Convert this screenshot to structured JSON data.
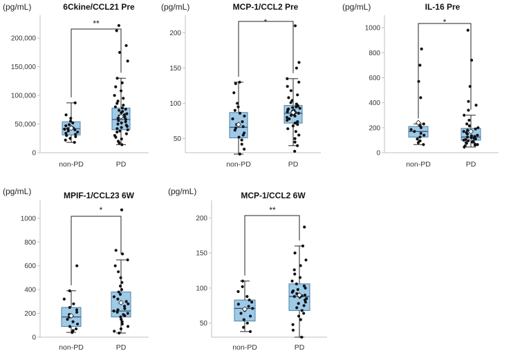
{
  "figure": {
    "description": "Box plots comparing non-PD and PD groups"
  },
  "chart_data": [
    {
      "type": "box",
      "title": "6Ckine/CCL21 Pre",
      "ylabel": "(pg/mL)",
      "ylim": [
        0,
        240000
      ],
      "yticks": [
        0,
        50000,
        100000,
        150000,
        200000
      ],
      "yticklabels": [
        "0",
        "50,000",
        "100,000",
        "150,000",
        "200,000"
      ],
      "categories": [
        "non-PD",
        "PD"
      ],
      "significance": "**",
      "boxes": [
        {
          "name": "non-PD",
          "q1": 31000,
          "median": 42000,
          "q3": 54000,
          "whisker_low": 18000,
          "whisker_high": 87000,
          "mean": 43000,
          "points": [
            18000,
            22000,
            25000,
            28000,
            30000,
            32000,
            34000,
            36000,
            38000,
            40000,
            41000,
            42000,
            43000,
            45000,
            47000,
            49000,
            52000,
            55000,
            60000,
            66000,
            87000
          ]
        },
        {
          "name": "PD",
          "q1": 40000,
          "median": 58000,
          "q3": 78000,
          "whisker_low": 14000,
          "whisker_high": 130000,
          "mean": 63000,
          "points": [
            14000,
            17000,
            20000,
            24000,
            27000,
            30000,
            33000,
            36000,
            38000,
            40000,
            42000,
            44000,
            46000,
            48000,
            50000,
            52000,
            54000,
            56000,
            58000,
            60000,
            62000,
            64000,
            66000,
            68000,
            70000,
            72000,
            74000,
            76000,
            78000,
            80000,
            83000,
            86000,
            90000,
            95000,
            100000,
            108000,
            115000,
            122000,
            130000,
            160000,
            175000,
            187000,
            213000,
            222000
          ]
        }
      ]
    },
    {
      "type": "box",
      "title": "MCP-1/CCL2 Pre",
      "ylabel": "(pg/mL)",
      "ylim": [
        30,
        225
      ],
      "yticks": [
        50,
        100,
        150,
        200
      ],
      "yticklabels": [
        "50",
        "100",
        "150",
        "200"
      ],
      "categories": [
        "non-PD",
        "PD"
      ],
      "significance": "*",
      "boxes": [
        {
          "name": "non-PD",
          "q1": 51,
          "median": 66,
          "q3": 87,
          "whisker_low": 28,
          "whisker_high": 130,
          "mean": 70,
          "points": [
            28,
            35,
            42,
            48,
            52,
            55,
            58,
            62,
            65,
            67,
            70,
            74,
            78,
            82,
            86,
            90,
            95,
            100,
            115,
            128,
            130
          ]
        },
        {
          "name": "PD",
          "q1": 72,
          "median": 86,
          "q3": 97,
          "whisker_low": 40,
          "whisker_high": 135,
          "mean": 87,
          "points": [
            32,
            40,
            45,
            50,
            55,
            60,
            64,
            68,
            70,
            72,
            74,
            76,
            78,
            80,
            82,
            83,
            84,
            85,
            86,
            87,
            88,
            89,
            90,
            91,
            92,
            93,
            94,
            95,
            96,
            97,
            99,
            101,
            104,
            108,
            112,
            118,
            124,
            130,
            135,
            150,
            158,
            210
          ]
        }
      ]
    },
    {
      "type": "box",
      "title": "IL-16 Pre",
      "ylabel": "(pg/mL)",
      "ylim": [
        0,
        1100
      ],
      "yticks": [
        0,
        200,
        400,
        600,
        800,
        1000
      ],
      "yticklabels": [
        "0",
        "200",
        "400",
        "600",
        "800",
        "1000"
      ],
      "categories": [
        "non-PD",
        "PD"
      ],
      "significance": "*",
      "boxes": [
        {
          "name": "non-PD",
          "q1": 125,
          "median": 170,
          "q3": 210,
          "whisker_low": 65,
          "whisker_high": 230,
          "mean": 240,
          "points": [
            65,
            80,
            95,
            110,
            125,
            140,
            155,
            170,
            185,
            200,
            215,
            230,
            440,
            570,
            700,
            830
          ]
        },
        {
          "name": "PD",
          "q1": 100,
          "median": 125,
          "q3": 195,
          "whisker_low": 45,
          "whisker_high": 300,
          "mean": 170,
          "points": [
            45,
            55,
            60,
            65,
            70,
            75,
            80,
            85,
            90,
            95,
            100,
            105,
            110,
            115,
            120,
            125,
            130,
            135,
            140,
            150,
            160,
            170,
            180,
            190,
            200,
            215,
            230,
            260,
            300,
            340,
            380,
            410,
            530,
            740,
            980
          ]
        }
      ]
    },
    {
      "type": "box",
      "title": "MPIF-1/CCL23 6W",
      "ylabel": "(pg/mL)",
      "ylim": [
        0,
        1150
      ],
      "yticks": [
        0,
        200,
        400,
        600,
        800,
        1000
      ],
      "yticklabels": [
        "0",
        "200",
        "400",
        "600",
        "800",
        "1000"
      ],
      "categories": [
        "non-PD",
        "PD"
      ],
      "significance": "*",
      "boxes": [
        {
          "name": "non-PD",
          "q1": 90,
          "median": 170,
          "q3": 250,
          "whisker_low": 40,
          "whisker_high": 390,
          "mean": 180,
          "points": [
            40,
            55,
            70,
            90,
            110,
            130,
            150,
            170,
            190,
            210,
            230,
            250,
            280,
            320,
            390,
            600
          ]
        },
        {
          "name": "PD",
          "q1": 170,
          "median": 220,
          "q3": 380,
          "whisker_low": 35,
          "whisker_high": 650,
          "mean": 290,
          "points": [
            35,
            50,
            70,
            90,
            110,
            130,
            150,
            170,
            180,
            190,
            200,
            210,
            220,
            230,
            240,
            260,
            280,
            300,
            320,
            340,
            360,
            380,
            400,
            430,
            460,
            500,
            550,
            600,
            650,
            700,
            730,
            1070
          ]
        }
      ]
    },
    {
      "type": "box",
      "title": "MCP-1/CCL2 6W",
      "ylabel": "(pg/mL)",
      "ylim": [
        30,
        225
      ],
      "yticks": [
        50,
        100,
        150,
        200
      ],
      "yticklabels": [
        "50",
        "100",
        "150",
        "200"
      ],
      "categories": [
        "non-PD",
        "PD"
      ],
      "significance": "**",
      "boxes": [
        {
          "name": "non-PD",
          "q1": 53,
          "median": 71,
          "q3": 83,
          "whisker_low": 38,
          "whisker_high": 110,
          "mean": 70,
          "points": [
            38,
            44,
            50,
            55,
            60,
            64,
            68,
            71,
            74,
            77,
            80,
            83,
            88,
            95,
            102,
            110
          ]
        },
        {
          "name": "PD",
          "q1": 68,
          "median": 88,
          "q3": 106,
          "whisker_low": 30,
          "whisker_high": 160,
          "mean": 90,
          "points": [
            30,
            40,
            48,
            55,
            60,
            64,
            68,
            72,
            75,
            78,
            80,
            83,
            85,
            87,
            88,
            89,
            90,
            92,
            94,
            96,
            98,
            100,
            103,
            106,
            110,
            115,
            120,
            126,
            132,
            140,
            150,
            160,
            187
          ]
        }
      ]
    }
  ]
}
